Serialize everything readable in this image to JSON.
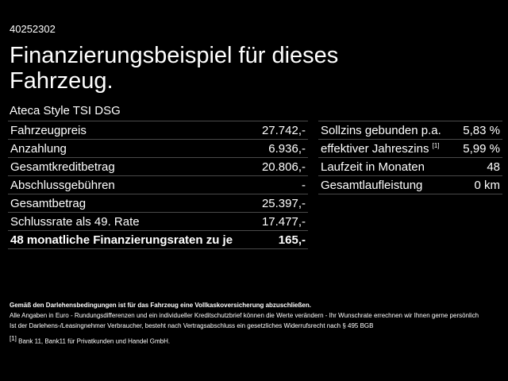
{
  "id": "40252302",
  "title": "Finanzierungsbeispiel für dieses Fahrzeug.",
  "model": "Ateca Style TSI DSG",
  "left_rows": [
    {
      "label": "Fahrzeugpreis",
      "value": "27.742,-"
    },
    {
      "label": "Anzahlung",
      "value": "6.936,-"
    },
    {
      "label": "Gesamtkreditbetrag",
      "value": "20.806,-"
    },
    {
      "label": "Abschlussgebühren",
      "value": "-"
    },
    {
      "label": "Gesamtbetrag",
      "value": "25.397,-"
    },
    {
      "label": "Schlussrate als 49. Rate",
      "value": "17.477,-"
    },
    {
      "label": "48 monatliche Finanzierungsraten zu je",
      "value": "165,-"
    }
  ],
  "right_rows": [
    {
      "label": "Sollzins gebunden p.a.",
      "value": "5,83 %"
    },
    {
      "label": "effektiver Jahreszins",
      "sup": "[1]",
      "value": "5,99 %"
    },
    {
      "label": "Laufzeit in Monaten",
      "value": "48"
    },
    {
      "label": "Gesamtlaufleistung",
      "value": "0 km"
    }
  ],
  "notes": {
    "bold": "Gemäß den Darlehensbedingungen ist für das Fahrzeug eine Vollkaskoversicherung abzuschließen.",
    "line1": "Alle Angaben in Euro - Rundungsdifferenzen und ein individueller Kreditschutzbrief können die Werte verändern - Ihr Wunschrate errechnen wir Ihnen gerne persönlich",
    "line2": "Ist der Darlehens-/Leasingnehmer Verbraucher, besteht nach Vertragsabschluss ein gesetzliches Widerrufsrecht nach § 495 BGB",
    "footnote_mark": "[1]",
    "footnote": "Bank 11, Bank11 für Privatkunden und Handel GmbH."
  }
}
